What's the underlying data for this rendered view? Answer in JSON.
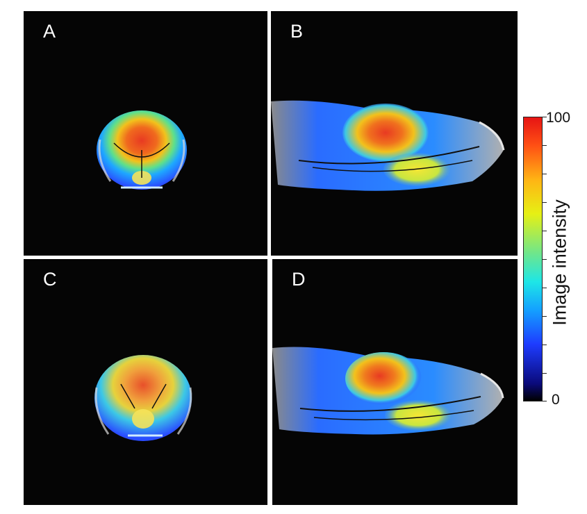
{
  "panels": [
    {
      "letter": "A",
      "view": "coronal"
    },
    {
      "letter": "B",
      "view": "sagittal"
    },
    {
      "letter": "C",
      "view": "coronal"
    },
    {
      "letter": "D",
      "view": "sagittal"
    }
  ],
  "colorbar": {
    "title": "Image intensity",
    "max_label": "100",
    "min_label": "0",
    "colormap": "jet",
    "colors": [
      "#000000",
      "#1e3cff",
      "#1ee6e6",
      "#e6f014",
      "#ff5014",
      "#e61414"
    ]
  }
}
